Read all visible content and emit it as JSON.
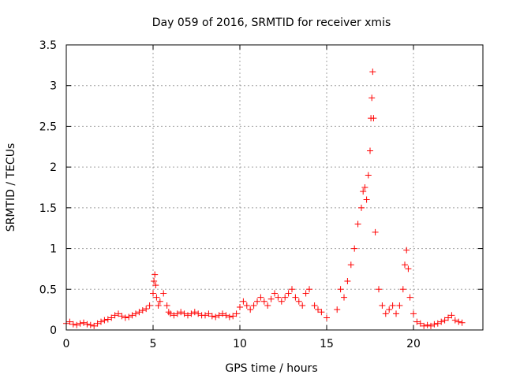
{
  "chart_data": {
    "type": "scatter",
    "title": "Day 059 of 2016, SRMTID for receiver xmis",
    "xlabel": "GPS time / hours",
    "ylabel": "SRMTID / TECUs",
    "xlim": [
      0,
      24
    ],
    "ylim": [
      0,
      3.5
    ],
    "xticks": [
      0,
      5,
      10,
      15,
      20
    ],
    "xtick_labels": [
      "0",
      "5",
      "10",
      "15",
      "20"
    ],
    "yticks": [
      0,
      0.5,
      1,
      1.5,
      2,
      2.5,
      3,
      3.5
    ],
    "ytick_labels": [
      "0",
      "0.5",
      "1",
      "1.5",
      "2",
      "2.5",
      "3",
      "3.5"
    ],
    "grid": true,
    "marker": "+",
    "series": [
      {
        "name": "SRMTID",
        "color": "#ff0000",
        "x": [
          0.0,
          0.2,
          0.4,
          0.6,
          0.8,
          1.0,
          1.2,
          1.4,
          1.6,
          1.8,
          2.0,
          2.2,
          2.4,
          2.6,
          2.8,
          3.0,
          3.2,
          3.4,
          3.6,
          3.8,
          4.0,
          4.2,
          4.4,
          4.6,
          4.8,
          5.0,
          5.05,
          5.1,
          5.15,
          5.2,
          5.3,
          5.4,
          5.6,
          5.8,
          5.9,
          6.0,
          6.2,
          6.4,
          6.6,
          6.8,
          7.0,
          7.2,
          7.4,
          7.6,
          7.8,
          8.0,
          8.2,
          8.4,
          8.6,
          8.8,
          9.0,
          9.2,
          9.4,
          9.6,
          9.8,
          10.0,
          10.2,
          10.4,
          10.6,
          10.8,
          11.0,
          11.2,
          11.4,
          11.6,
          11.8,
          12.0,
          12.2,
          12.4,
          12.6,
          12.8,
          13.0,
          13.2,
          13.4,
          13.6,
          13.8,
          14.0,
          14.3,
          14.5,
          14.7,
          15.0,
          15.6,
          15.8,
          16.0,
          16.2,
          16.4,
          16.6,
          16.8,
          17.0,
          17.1,
          17.2,
          17.3,
          17.4,
          17.5,
          17.55,
          17.6,
          17.65,
          17.7,
          17.8,
          18.0,
          18.2,
          18.4,
          18.6,
          18.8,
          19.0,
          19.2,
          19.4,
          19.5,
          19.6,
          19.7,
          19.8,
          20.0,
          20.2,
          20.4,
          20.6,
          20.8,
          21.0,
          21.2,
          21.4,
          21.6,
          21.8,
          22.0,
          22.2,
          22.4,
          22.6,
          22.8
        ],
        "y": [
          0.08,
          0.1,
          0.07,
          0.06,
          0.08,
          0.09,
          0.07,
          0.06,
          0.05,
          0.08,
          0.1,
          0.12,
          0.13,
          0.15,
          0.18,
          0.2,
          0.17,
          0.15,
          0.16,
          0.18,
          0.2,
          0.22,
          0.24,
          0.26,
          0.3,
          0.45,
          0.6,
          0.68,
          0.55,
          0.4,
          0.3,
          0.35,
          0.45,
          0.3,
          0.22,
          0.2,
          0.18,
          0.2,
          0.22,
          0.2,
          0.18,
          0.2,
          0.22,
          0.2,
          0.18,
          0.18,
          0.2,
          0.17,
          0.16,
          0.18,
          0.2,
          0.18,
          0.16,
          0.17,
          0.2,
          0.28,
          0.35,
          0.3,
          0.25,
          0.3,
          0.35,
          0.4,
          0.35,
          0.3,
          0.38,
          0.45,
          0.4,
          0.35,
          0.4,
          0.45,
          0.5,
          0.4,
          0.35,
          0.3,
          0.45,
          0.5,
          0.3,
          0.25,
          0.22,
          0.15,
          0.25,
          0.5,
          0.4,
          0.6,
          0.8,
          1.0,
          1.3,
          1.5,
          1.7,
          1.75,
          1.6,
          1.9,
          2.2,
          2.6,
          2.85,
          3.17,
          2.6,
          1.2,
          0.5,
          0.3,
          0.2,
          0.25,
          0.3,
          0.2,
          0.3,
          0.5,
          0.8,
          0.98,
          0.75,
          0.4,
          0.2,
          0.1,
          0.08,
          0.05,
          0.06,
          0.05,
          0.07,
          0.08,
          0.1,
          0.12,
          0.15,
          0.18,
          0.12,
          0.1,
          0.09
        ]
      }
    ]
  }
}
